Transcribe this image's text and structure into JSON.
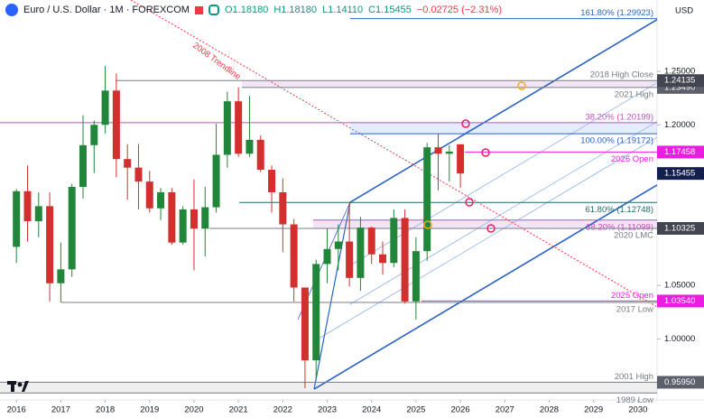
{
  "chart_data": {
    "type": "candlestick",
    "title": "Euro / U.S. Dollar · 1M · FOREXCOM",
    "ohlc_header": [
      "O1.18180",
      "H1.18180",
      "L1.14110",
      "C1.15455"
    ],
    "change": "−0.02725 (−2.31%)",
    "currency": "USD",
    "trendline_label": "2008 Trendline",
    "up_color": "#22863a",
    "down_color": "#d32f2f",
    "x": [
      2016.0,
      2016.25,
      2016.5,
      2016.75,
      2017.0,
      2017.25,
      2017.5,
      2017.75,
      2018.0,
      2018.25,
      2018.5,
      2018.75,
      2019.0,
      2019.25,
      2019.5,
      2019.75,
      2020.0,
      2020.25,
      2020.5,
      2020.75,
      2021.0,
      2021.25,
      2021.5,
      2021.75,
      2022.0,
      2022.25,
      2022.5,
      2022.75,
      2023.0,
      2023.25,
      2023.5,
      2023.75,
      2024.0,
      2024.25,
      2024.5,
      2024.75,
      2025.0,
      2025.25,
      2025.5,
      2025.75,
      2026.0
    ],
    "open": [
      1.086,
      1.138,
      1.11,
      1.124,
      1.052,
      1.065,
      1.142,
      1.181,
      1.2,
      1.232,
      1.168,
      1.16,
      1.147,
      1.122,
      1.137,
      1.09,
      1.121,
      1.103,
      1.123,
      1.172,
      1.222,
      1.173,
      1.186,
      1.158,
      1.137,
      1.107,
      1.048,
      0.98,
      1.07,
      1.084,
      1.091,
      1.057,
      1.104,
      1.079,
      1.071,
      1.113,
      1.035,
      1.082,
      1.179,
      1.173,
      1.1818
    ],
    "high": [
      1.14,
      1.162,
      1.137,
      1.137,
      1.09,
      1.145,
      1.209,
      1.204,
      1.255,
      1.248,
      1.182,
      1.182,
      1.157,
      1.141,
      1.141,
      1.124,
      1.149,
      1.142,
      1.201,
      1.231,
      1.235,
      1.227,
      1.19,
      1.162,
      1.15,
      1.112,
      1.047,
      1.074,
      1.103,
      1.107,
      1.128,
      1.114,
      1.105,
      1.091,
      1.121,
      1.121,
      1.095,
      1.183,
      1.192,
      1.181,
      1.1818
    ],
    "low": [
      1.071,
      1.091,
      1.095,
      1.035,
      1.034,
      1.058,
      1.131,
      1.155,
      1.192,
      1.151,
      1.13,
      1.121,
      1.118,
      1.111,
      1.088,
      1.088,
      1.064,
      1.077,
      1.118,
      1.16,
      1.17,
      1.17,
      1.156,
      1.118,
      1.081,
      1.035,
      0.954,
      0.963,
      1.052,
      1.064,
      1.049,
      1.045,
      1.07,
      1.06,
      1.067,
      1.033,
      1.018,
      1.073,
      1.139,
      1.147,
      1.1411
    ],
    "close": [
      1.138,
      1.11,
      1.124,
      1.052,
      1.065,
      1.142,
      1.181,
      1.2,
      1.232,
      1.168,
      1.16,
      1.147,
      1.122,
      1.137,
      1.09,
      1.121,
      1.103,
      1.123,
      1.172,
      1.222,
      1.173,
      1.186,
      1.158,
      1.137,
      1.107,
      1.048,
      0.98,
      1.07,
      1.084,
      1.091,
      1.057,
      1.104,
      1.079,
      1.071,
      1.113,
      1.035,
      1.082,
      1.179,
      1.173,
      1.175,
      1.15455
    ],
    "xlim": [
      2015.63,
      2030.43
    ],
    "ylim": [
      0.943,
      1.3166
    ],
    "xticks": [
      2016,
      2017,
      2018,
      2019,
      2020,
      2021,
      2022,
      2023,
      2024,
      2025,
      2026,
      2027,
      2028,
      2029,
      2030
    ],
    "yticks": [
      {
        "value": 1.25,
        "label": "1.25000"
      },
      {
        "value": 1.2,
        "label": "1.20000"
      },
      {
        "value": 1.05,
        "label": "1.05000"
      },
      {
        "value": 1.0,
        "label": "1.00000"
      }
    ],
    "levels": [
      {
        "value": 1.29923,
        "label": "161.80% (1.29923)",
        "color": "#2962c4",
        "pos": "above"
      },
      {
        "value": 1.24135,
        "label": "2018 High Close",
        "color": "#787b86",
        "pos": "above"
      },
      {
        "value": 1.2349,
        "label": "2021 High",
        "color": "#787b86",
        "pos": "below"
      },
      {
        "value": 1.20199,
        "label": "38.20% (1.20199)",
        "color": "#c04fc0",
        "pos": "above"
      },
      {
        "value": 1.19172,
        "label": "100.00% (1.19172)",
        "color": "#2962c4",
        "pos": "below"
      },
      {
        "value": 1.17458,
        "label": "2026 Open",
        "color": "#e91ee0",
        "pos": "below"
      },
      {
        "value": 1.12748,
        "label": "61.80% (1.12748)",
        "color": "#1b6b6b",
        "pos": "below"
      },
      {
        "value": 1.11099,
        "label": "38.20% (1.11099)",
        "color": "#c04fc0",
        "pos": "below"
      },
      {
        "value": 1.10325,
        "label": "2020 LMC",
        "color": "#787b86",
        "pos": "below"
      },
      {
        "value": 1.0354,
        "label": "2025 Open",
        "color": "#e91ee0",
        "pos": "above"
      },
      {
        "value": 1.0341,
        "label": "2017 Low",
        "color": "#787b86",
        "pos": "below"
      },
      {
        "value": 0.9595,
        "label": "2001 High",
        "color": "#787b86",
        "pos": "above"
      },
      {
        "value": 0.9495,
        "label": "1989 Low",
        "color": "#787b86",
        "pos": "below"
      }
    ],
    "price_labels": [
      {
        "value": 1.2349,
        "label": "1.23490",
        "color": "#5d606b"
      },
      {
        "value": 1.24135,
        "label": "1.24135",
        "color": "#434651"
      },
      {
        "value": 1.17458,
        "label": "1.17458",
        "color": "#e91ee0"
      },
      {
        "value": 1.15455,
        "label": "1.15455",
        "color": "#131f4d"
      },
      {
        "value": 1.10325,
        "label": "1.10325",
        "color": "#434651"
      },
      {
        "value": 1.0354,
        "label": "1.03540",
        "color": "#e91ee0"
      },
      {
        "value": 0.9595,
        "label": "0.95950",
        "color": "#5d606b"
      }
    ]
  }
}
